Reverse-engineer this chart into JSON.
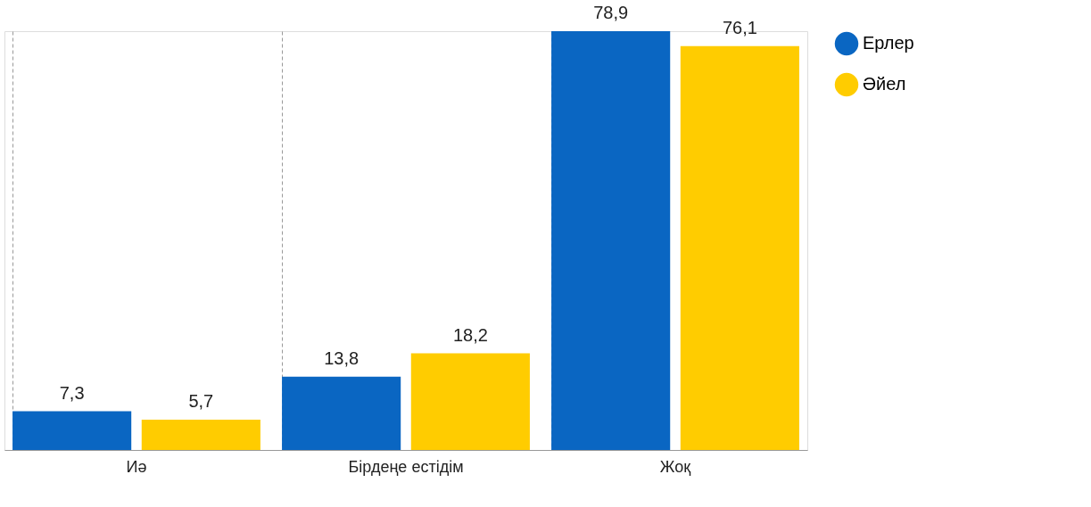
{
  "chart_data": {
    "type": "bar",
    "categories": [
      "Иә",
      "Бірдеңе естідім",
      "Жоқ"
    ],
    "series": [
      {
        "name": "Ерлер",
        "color": "#0a66c2",
        "values": [
          7.3,
          13.8,
          78.9
        ],
        "value_labels": [
          "7,3",
          "13,8",
          "78,9"
        ]
      },
      {
        "name": "Әйел",
        "color": "#ffcc00",
        "values": [
          5.7,
          18.2,
          76.1
        ],
        "value_labels": [
          "5,7",
          "18,2",
          "76,1"
        ]
      }
    ],
    "grid": "x",
    "legend": "right"
  }
}
